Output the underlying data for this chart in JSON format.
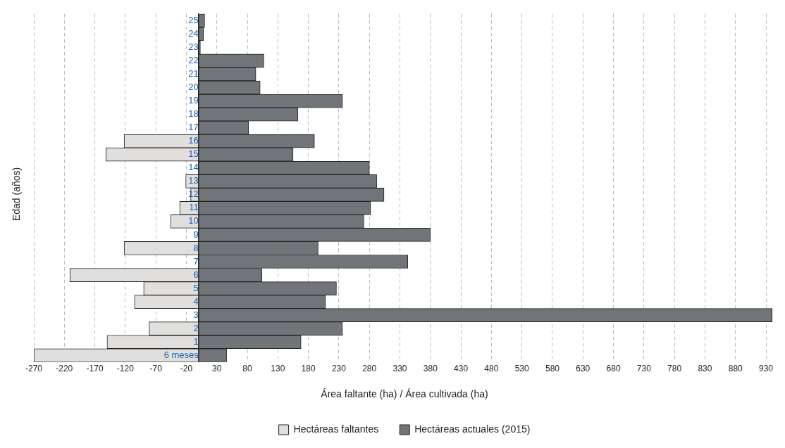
{
  "chart_data": {
    "type": "bar",
    "orientation": "horizontal",
    "stacked": true,
    "xlabel": "Área faltante (ha) / Área cultivada (ha)",
    "ylabel": "Edad (años)",
    "categories": [
      "25",
      "24",
      "23",
      "22",
      "21",
      "20",
      "19",
      "18",
      "17",
      "16",
      "15",
      "14",
      "13",
      "12",
      "11",
      "10",
      "9",
      "8",
      "7",
      "6",
      "5",
      "4",
      "3",
      "2",
      "1",
      "6 meses"
    ],
    "series": [
      {
        "name": "Hectáreas faltantes",
        "color": "#e0dfde",
        "values": [
          null,
          null,
          null,
          null,
          null,
          null,
          null,
          null,
          null,
          -122,
          -152,
          null,
          -21,
          -13,
          -31,
          -46,
          null,
          -122,
          null,
          -211,
          -90,
          -105,
          null,
          -81,
          -150,
          -270
        ]
      },
      {
        "name": "Hectáreas actuales (2015)",
        "color": "#717478",
        "values": [
          10,
          8,
          3,
          107,
          94,
          101,
          236,
          163,
          82,
          190,
          155,
          280,
          292,
          304,
          282,
          271,
          380,
          196,
          343,
          104,
          226,
          208,
          940,
          236,
          168,
          46
        ]
      }
    ],
    "xlim": [
      -270,
      945
    ],
    "xticks": [
      -270,
      -220,
      -170,
      -120,
      -70,
      -20,
      30,
      80,
      130,
      180,
      230,
      280,
      330,
      380,
      430,
      480,
      530,
      580,
      630,
      680,
      730,
      780,
      830,
      880,
      930
    ],
    "grid": "x",
    "legend": "bottom"
  }
}
